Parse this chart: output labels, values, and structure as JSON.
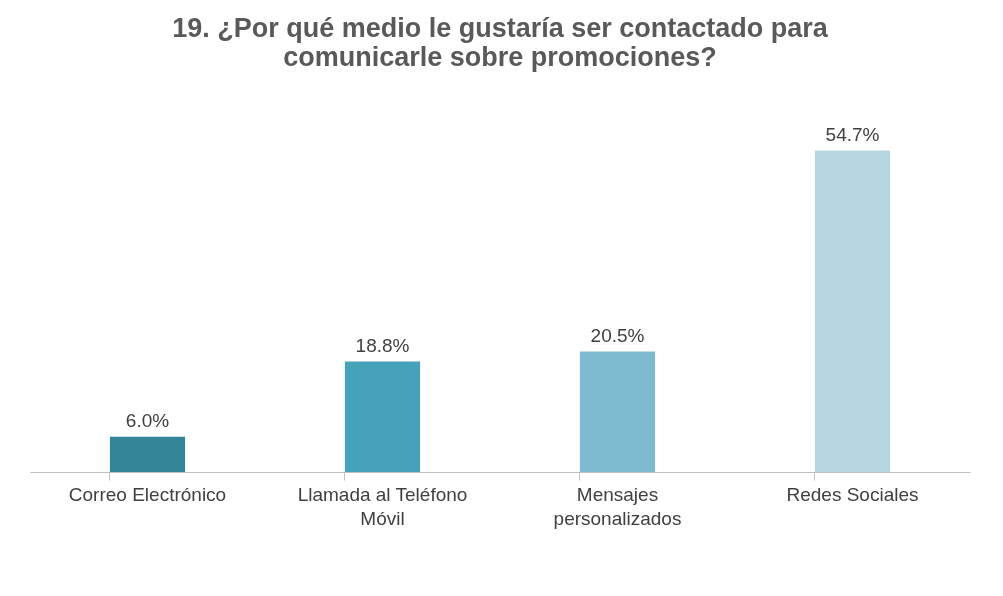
{
  "chart_data": {
    "type": "bar",
    "title": "19. ¿Por qué medio le gustaría ser contactado para comunicarle sobre promociones?",
    "categories": [
      "Correo Electrónico",
      "Llamada al Teléfono Móvil",
      "Mensajes personalizados",
      "Redes Sociales"
    ],
    "values": [
      6.0,
      18.8,
      20.5,
      54.7
    ],
    "colors": [
      "#358598",
      "#46a2b9",
      "#7fbbd0",
      "#b5d5e0"
    ],
    "value_labels": [
      "6.0%",
      "18.8%",
      "20.5%",
      "54.7%"
    ],
    "grid": false
  }
}
